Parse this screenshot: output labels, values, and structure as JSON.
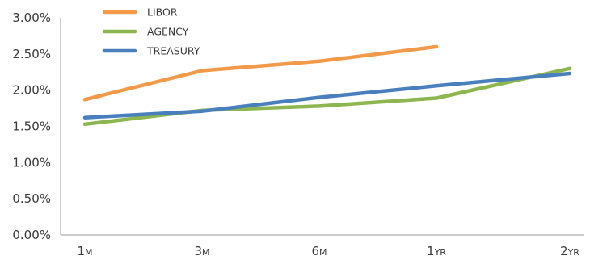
{
  "chart_data": {
    "type": "line",
    "title": "",
    "xlabel": "",
    "ylabel": "",
    "categories": [
      {
        "num": "1",
        "unit": "M"
      },
      {
        "num": "3",
        "unit": "M"
      },
      {
        "num": "6",
        "unit": "M"
      },
      {
        "num": "1",
        "unit": "YR"
      },
      {
        "num": "2",
        "unit": "YR"
      }
    ],
    "y_ticks": [
      "0.00%",
      "0.50%",
      "1.00%",
      "1.50%",
      "2.00%",
      "2.50%",
      "3.00%"
    ],
    "ylim": [
      0,
      3.0
    ],
    "y_tick_values": [
      0,
      0.5,
      1.0,
      1.5,
      2.0,
      2.5,
      3.0
    ],
    "grid": false,
    "legend_position": "top-left",
    "series": [
      {
        "name": "LIBOR",
        "color": "#f39a4a",
        "values": [
          1.87,
          2.27,
          2.4,
          2.6,
          null
        ]
      },
      {
        "name": "AGENCY",
        "color": "#8db650",
        "values": [
          1.53,
          1.72,
          1.78,
          1.89,
          2.3
        ]
      },
      {
        "name": "TREASURY",
        "color": "#4a7fbd",
        "values": [
          1.62,
          1.71,
          1.9,
          2.06,
          2.23
        ]
      }
    ]
  }
}
